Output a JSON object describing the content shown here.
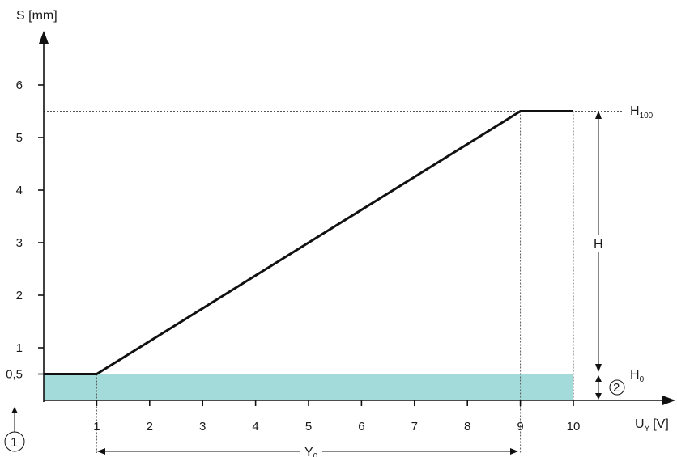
{
  "chart_data": {
    "type": "line",
    "ylabel": "S [mm]",
    "xlabel": "U",
    "xlabel_sub": "Y",
    "xlabel_unit": "[V]",
    "xlim": [
      0,
      10
    ],
    "ylim": [
      0,
      6
    ],
    "x_ticks": [
      "1",
      "2",
      "3",
      "4",
      "5",
      "6",
      "7",
      "8",
      "9",
      "10"
    ],
    "y_ticks": [
      "0,5",
      "1",
      "2",
      "3",
      "4",
      "5",
      "6"
    ],
    "series": [
      {
        "x": [
          0,
          1,
          9,
          10
        ],
        "y": [
          0.5,
          0.5,
          5.5,
          5.5
        ]
      }
    ],
    "shaded_band": {
      "x": [
        0,
        10
      ],
      "y": [
        0,
        0.5
      ],
      "color": "#a3dbdb"
    },
    "annotations": {
      "h100": "H",
      "h100_sub": "100",
      "h": "H",
      "h0": "H",
      "h0_sub": "0",
      "y0": "Y",
      "y0_sub": "0",
      "marker1": "1",
      "marker2": "2"
    }
  }
}
